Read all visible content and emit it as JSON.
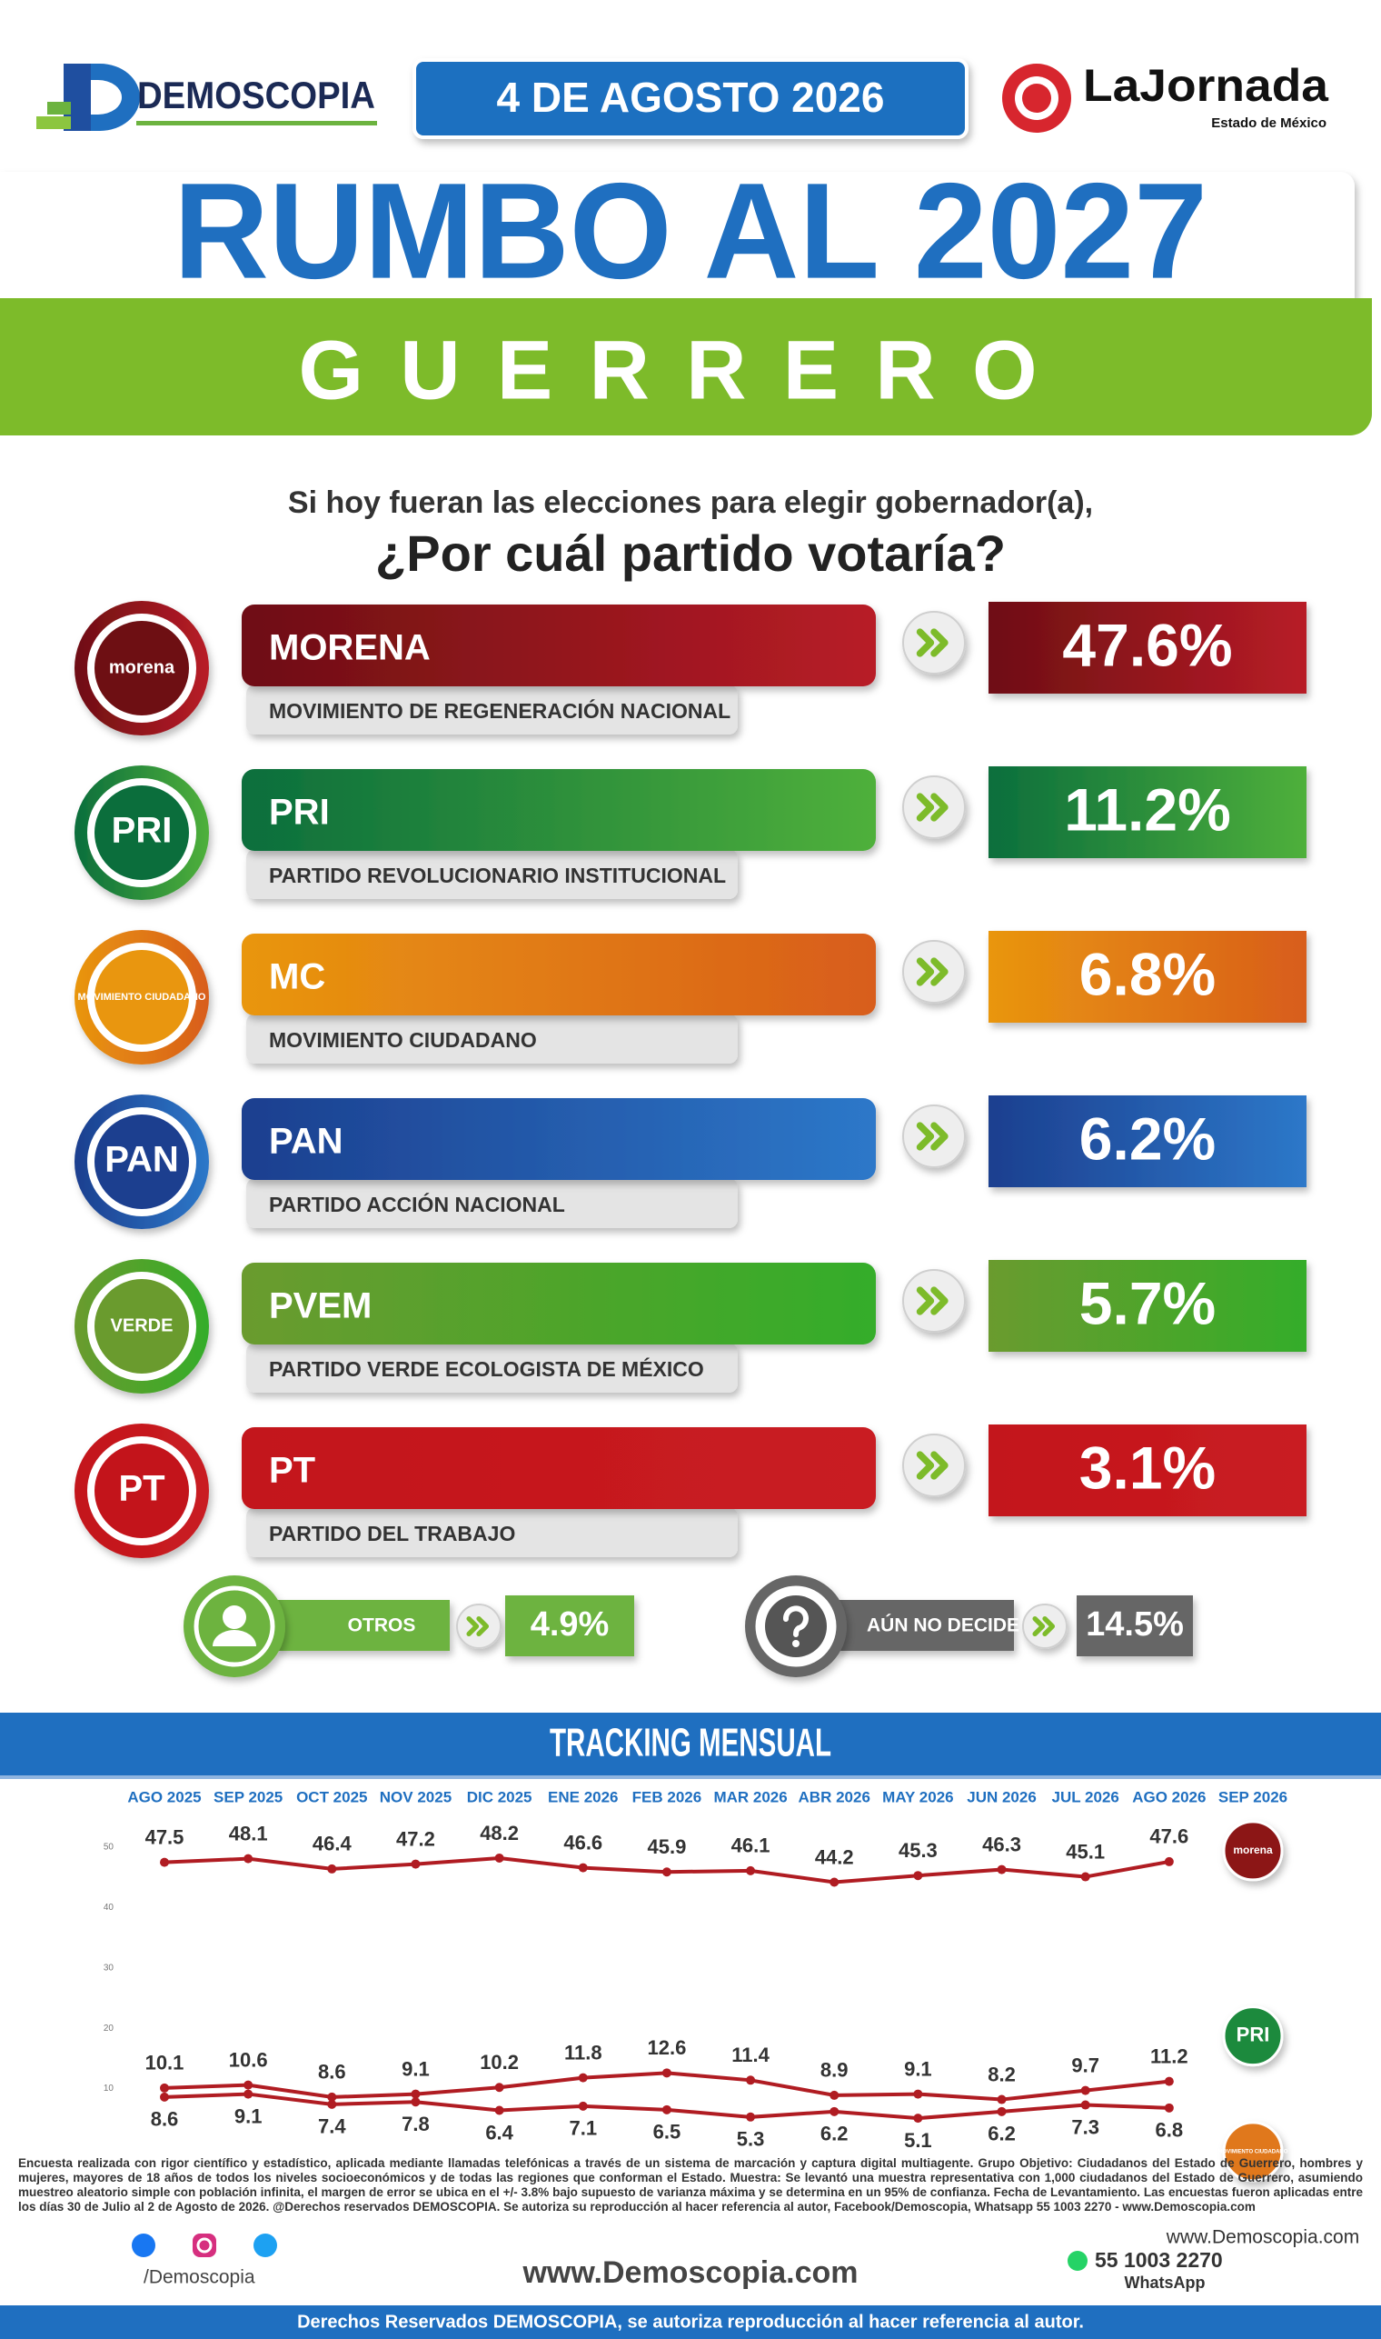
{
  "header": {
    "brand": "DEMOSCOPIA",
    "date": "4 DE AGOSTO 2026",
    "partner": "LaJornada",
    "partner_sub": "Estado de México",
    "title": "RUMBO AL 2027",
    "state": "GUERRERO"
  },
  "question": {
    "line1": "Si hoy fueran las elecciones para elegir gobernador(a),",
    "line2": "¿Por cuál partido votaría?"
  },
  "parties": [
    {
      "logo": "morena",
      "name": "MORENA",
      "full": "MOVIMIENTO DE REGENERACIÓN NACIONAL",
      "value": 47.6,
      "value_label": "47.6%",
      "colors": [
        "#6e0f13",
        "#b81c27"
      ]
    },
    {
      "logo": "PRI",
      "name": "PRI",
      "full": "PARTIDO REVOLUCIONARIO INSTITUCIONAL",
      "value": 11.2,
      "value_label": "11.2%",
      "colors": [
        "#0b6e3c",
        "#4fb03a"
      ]
    },
    {
      "logo": "MOVIMIENTO CIUDADANO",
      "name": "MC",
      "full": "MOVIMIENTO CIUDADANO",
      "value": 6.8,
      "value_label": "6.8%",
      "colors": [
        "#e9960f",
        "#d85d1b"
      ]
    },
    {
      "logo": "PAN",
      "name": "PAN",
      "full": "PARTIDO ACCIÓN NACIONAL",
      "value": 6.2,
      "value_label": "6.2%",
      "colors": [
        "#1c3f8f",
        "#2d78c9"
      ]
    },
    {
      "logo": "VERDE",
      "name": "PVEM",
      "full": "PARTIDO VERDE ECOLOGISTA DE MÉXICO",
      "value": 5.7,
      "value_label": "5.7%",
      "colors": [
        "#6a9b2e",
        "#34ad2a"
      ]
    },
    {
      "logo": "PT",
      "name": "PT",
      "full": "PARTIDO DEL TRABAJO",
      "value": 3.1,
      "value_label": "3.1%",
      "colors": [
        "#c3141b",
        "#c91d22"
      ]
    }
  ],
  "others": [
    {
      "name": "OTROS",
      "value": 4.9,
      "value_label": "4.9%",
      "color": "#6db33f"
    },
    {
      "name": "AÚN NO DECIDE",
      "value": 14.5,
      "value_label": "14.5%",
      "color": "#666666"
    }
  ],
  "chart_data": {
    "type": "line",
    "title": "TRACKING MENSUAL",
    "categories": [
      "AGO 2025",
      "SEP 2025",
      "OCT 2025",
      "NOV 2025",
      "DIC 2025",
      "ENE 2026",
      "FEB 2026",
      "MAR 2026",
      "ABR 2026",
      "MAY 2026",
      "JUN 2026",
      "JUL 2026",
      "AGO 2026",
      "SEP 2026"
    ],
    "series": [
      {
        "name": "morena",
        "color": "#b01c22",
        "values": [
          47.5,
          48.1,
          46.4,
          47.2,
          48.2,
          46.6,
          45.9,
          46.1,
          44.2,
          45.3,
          46.3,
          45.1,
          47.6,
          null
        ]
      },
      {
        "name": "PRI",
        "color": "#b01c22",
        "values": [
          10.1,
          10.6,
          8.6,
          9.1,
          10.2,
          11.8,
          12.6,
          11.4,
          8.9,
          9.1,
          8.2,
          9.7,
          11.2,
          null
        ]
      },
      {
        "name": "MOVIMIENTO CIUDADANO",
        "color": "#b01c22",
        "values": [
          8.6,
          9.1,
          7.4,
          7.8,
          6.4,
          7.1,
          6.5,
          5.3,
          6.2,
          5.1,
          6.2,
          7.3,
          6.8,
          null
        ]
      }
    ],
    "ylim": [
      0,
      50
    ],
    "yticks": [
      10,
      20,
      30,
      40,
      50
    ],
    "grid": false
  },
  "footnote": "Encuesta realizada con rigor científico y estadístico, aplicada mediante llamadas telefónicas a través de un sistema de marcación y captura digital multiagente. Grupo Objetivo: Ciudadanos del Estado de Guerrero, hombres y mujeres, mayores de 18 años de todos los niveles socioeconómicos y de todas las regiones que conforman el Estado. Muestra: Se levantó una muestra representativa con 1,000 ciudadanos del Estado de Guerrero, asumiendo muestreo aleatorio simple con población infinita, el margen de error se ubica en el +/- 3.8% bajo supuesto de varianza máxima y se determina en un 95% de confianza. Fecha de Levantamiento. Las encuestas fueron aplicadas entre los días 30 de Julio al 2 de Agosto de 2026. @Derechos reservados DEMOSCOPIA. Se autoriza su reproducción al hacer referencia al autor, Facebook/Demoscopia, Whatsapp 55 1003 2270 - www.Demoscopia.com",
  "footer": {
    "social": "/Demoscopia",
    "site": "www.Demoscopia.com",
    "site_right": "www.Demoscopia.com",
    "phone": "55 1003 2270",
    "whatsapp": "WhatsApp",
    "rights": "Derechos Reservados DEMOSCOPIA, se autoriza reproducción al hacer referencia al autor."
  }
}
